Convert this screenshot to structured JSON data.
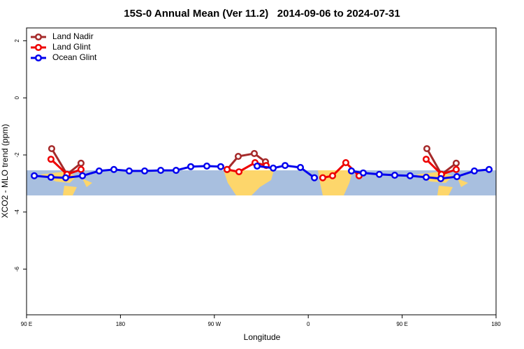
{
  "chart_data": {
    "type": "line",
    "title": "15S-0 Annual Mean (Ver 11.2)   2014-09-06 to 2024-07-31",
    "xlabel": "Longitude",
    "ylabel": "XCO2 - MLO trend (ppm)",
    "xlim": [
      90,
      540
    ],
    "xticks": [
      {
        "value": 90,
        "label": "90 E"
      },
      {
        "value": 180,
        "label": "180"
      },
      {
        "value": 270,
        "label": "90 W"
      },
      {
        "value": 360,
        "label": "0"
      },
      {
        "value": 450,
        "label": "90 E"
      },
      {
        "value": 540,
        "label": "180"
      }
    ],
    "ylim": [
      -7.6,
      2.45
    ],
    "yticks": [
      2,
      0,
      -2,
      -4,
      -6
    ],
    "legend": "top-left",
    "series": [
      {
        "name": "Land Nadir",
        "color": "#a52a2a",
        "x": [
          114.1,
          128.8,
          142.2,
          null,
          282.2,
          292.9,
          308.3,
          319,
          null,
          473.7,
          487.7,
          501.8
        ],
        "values": [
          -1.78,
          -2.68,
          -2.29,
          null,
          -2.51,
          -2.05,
          -1.95,
          -2.24,
          null,
          -1.78,
          -2.68,
          -2.29
        ]
      },
      {
        "name": "Land Glint",
        "color": "#ee0000",
        "x": [
          113.4,
          128.8,
          142.2,
          null,
          282.2,
          293.6,
          309,
          319.7,
          null,
          373.9,
          383.3,
          396,
          408.7,
          null,
          473,
          487.7,
          501.8
        ],
        "values": [
          -2.15,
          -2.68,
          -2.51,
          null,
          -2.51,
          -2.59,
          -2.27,
          -2.37,
          null,
          -2.8,
          -2.73,
          -2.27,
          -2.73,
          null,
          -2.15,
          -2.68,
          -2.51
        ]
      },
      {
        "name": "Ocean Glint",
        "color": "#0000ee",
        "x": [
          97.4,
          113.4,
          127.5,
          143.6,
          159.6,
          173.7,
          188.4,
          203.2,
          218.6,
          233.3,
          247.4,
          262.8,
          276.1,
          null,
          311,
          326.4,
          337.8,
          352.5,
          365.9,
          null,
          401.4,
          412.7,
          428.1,
          442.9,
          457.6,
          473,
          487,
          502.5,
          519.2,
          533.3
        ],
        "values": [
          -2.73,
          -2.78,
          -2.8,
          -2.73,
          -2.56,
          -2.51,
          -2.56,
          -2.56,
          -2.54,
          -2.54,
          -2.41,
          -2.39,
          -2.41,
          null,
          -2.39,
          -2.46,
          -2.37,
          -2.44,
          -2.8,
          null,
          -2.56,
          -2.63,
          -2.68,
          -2.71,
          -2.73,
          -2.78,
          -2.83,
          -2.76,
          -2.56,
          -2.51
        ]
      }
    ]
  }
}
